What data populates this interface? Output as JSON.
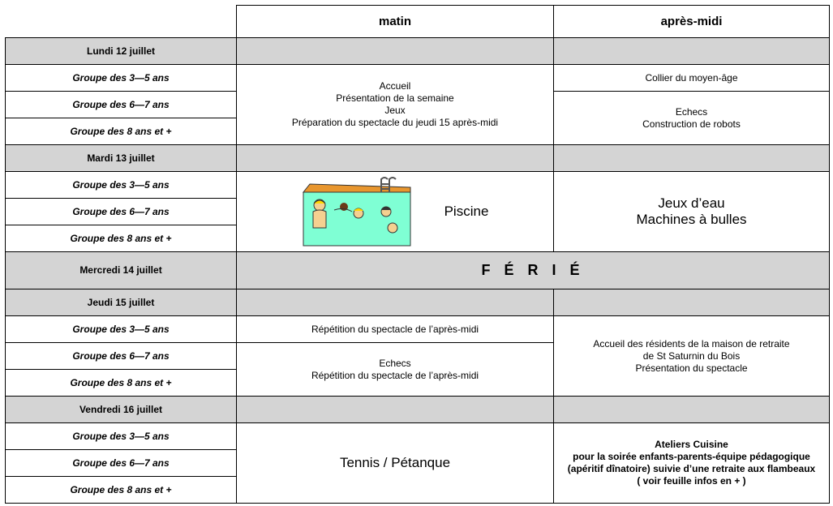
{
  "columns": [
    "matin",
    "après-midi"
  ],
  "days": [
    {
      "label": "Lundi 12 juillet",
      "groups": [
        "Groupe des 3—5 ans",
        "Groupe des 6—7 ans",
        "Groupe des 8 ans et +"
      ],
      "matin": [
        [
          "Accueil",
          "Présentation de la semaine",
          "Jeux",
          "Préparation du spectacle du jeudi 15 après-midi"
        ]
      ],
      "apres_midi": [
        [
          "Collier du moyen-âge"
        ],
        [
          "Echecs",
          "Construction de robots"
        ]
      ]
    },
    {
      "label": "Mardi 13 juillet",
      "groups": [
        "Groupe des 3—5 ans",
        "Groupe des 6—7 ans",
        "Groupe des 8 ans et +"
      ],
      "matin": [
        [
          "Piscine"
        ]
      ],
      "apres_midi": [
        [
          "Jeux d’eau",
          "Machines à bulles"
        ]
      ]
    },
    {
      "label": "Mercredi 14 juillet",
      "ferie": "F É R I É"
    },
    {
      "label": "Jeudi 15 juillet",
      "groups": [
        "Groupe des 3—5 ans",
        "Groupe des 6—7 ans",
        "Groupe des 8 ans et +"
      ],
      "matin": [
        [
          "Répétition du spectacle de l’après-midi"
        ],
        [
          "Echecs",
          "Répétition du spectacle de l’après-midi"
        ]
      ],
      "apres_midi": [
        [
          "Accueil des résidents de la maison de retraite",
          "de St Saturnin du Bois",
          "Présentation du spectacle"
        ]
      ]
    },
    {
      "label": "Vendredi 16 juillet",
      "groups": [
        "Groupe des 3—5 ans",
        "Groupe des 6—7 ans",
        "Groupe des 8 ans et +"
      ],
      "matin": [
        [
          "Tennis / Pétanque"
        ]
      ],
      "apres_midi": [
        [
          "Ateliers Cuisine",
          "pour la soirée enfants-parents-équipe pédagogique",
          "(apéritif dînatoire) suivie d’une retraite aux flambeaux",
          "( voir feuille infos en + )"
        ]
      ]
    }
  ]
}
